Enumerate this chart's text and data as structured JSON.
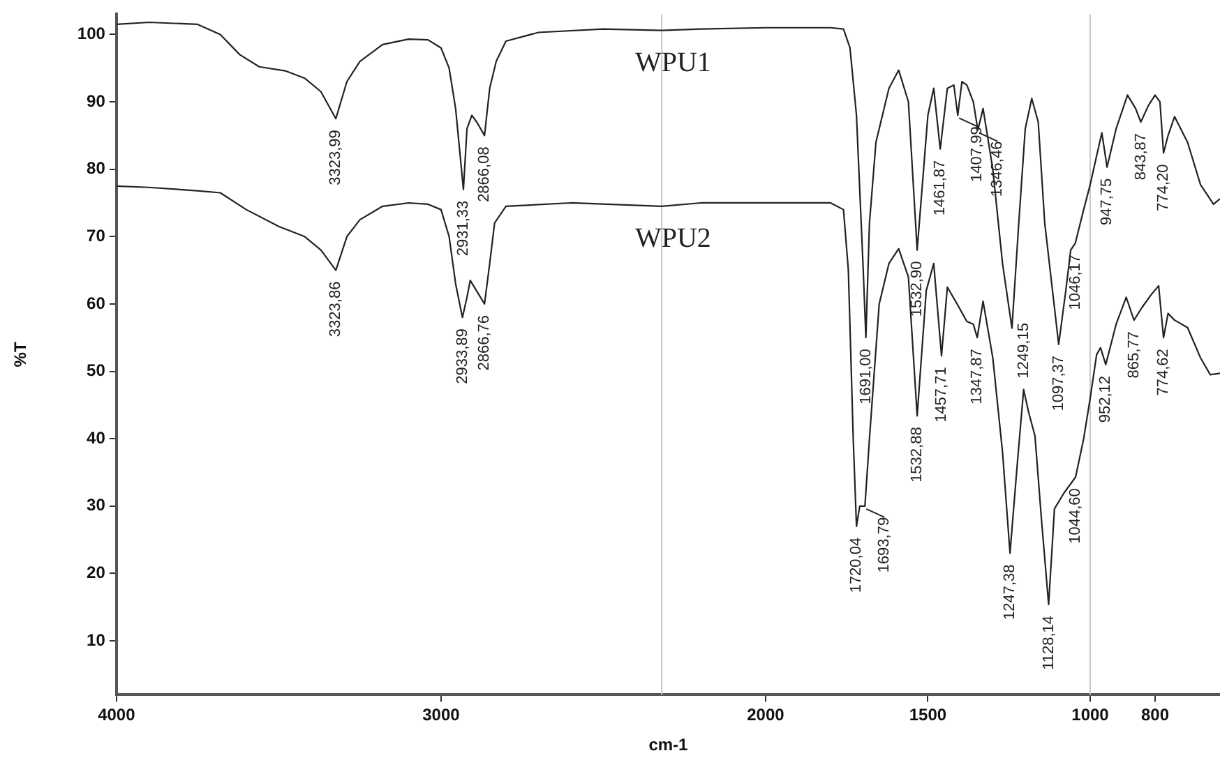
{
  "chart_data": {
    "type": "line",
    "xlabel": "cm-1",
    "ylabel": "%T",
    "xlim": [
      4000,
      600
    ],
    "xticks": [
      4000,
      3000,
      2000,
      1500,
      1000,
      800
    ],
    "ylim": [
      2,
      103
    ],
    "yticks": [
      10,
      20,
      30,
      40,
      50,
      60,
      70,
      80,
      90,
      100
    ],
    "grid": false,
    "legend": false,
    "marker": "none",
    "line_style": "solid",
    "ref_lines": [
      {
        "axis": "x",
        "value": 2320,
        "color": "#c8c8c8"
      },
      {
        "axis": "x",
        "value": 1000,
        "color": "#c8c8c8"
      }
    ],
    "series": [
      {
        "name": "WPU1",
        "color": "#222222",
        "x": [
          4000,
          3900,
          3750,
          3680,
          3620,
          3560,
          3480,
          3420,
          3370,
          3324,
          3290,
          3250,
          3180,
          3100,
          3040,
          3000,
          2975,
          2955,
          2931,
          2920,
          2905,
          2890,
          2866,
          2850,
          2830,
          2800,
          2700,
          2500,
          2320,
          2200,
          2000,
          1800,
          1760,
          1740,
          1720,
          1700,
          1691,
          1680,
          1660,
          1620,
          1590,
          1560,
          1533,
          1500,
          1482,
          1462,
          1440,
          1420,
          1408,
          1395,
          1380,
          1360,
          1346,
          1330,
          1300,
          1270,
          1241,
          1220,
          1200,
          1180,
          1160,
          1140,
          1097,
          1075,
          1060,
          1046,
          1020,
          1000,
          980,
          964,
          948,
          920,
          885,
          860,
          844,
          820,
          800,
          785,
          774,
          760,
          740,
          700,
          660,
          620,
          600
        ],
        "values": [
          101.5,
          101.8,
          101.5,
          100,
          97,
          95.2,
          94.6,
          93.5,
          91.5,
          87.5,
          93,
          96,
          98.5,
          99.3,
          99.2,
          98,
          95,
          89,
          77,
          86,
          88,
          87,
          85,
          92,
          96,
          99,
          100.3,
          100.8,
          100.6,
          100.8,
          101,
          101,
          100.8,
          98,
          88,
          66,
          55,
          72,
          84,
          92,
          94.7,
          90,
          68,
          88,
          92,
          83,
          92,
          92.5,
          88,
          93,
          92.5,
          90,
          85.8,
          89,
          80,
          66,
          56.4,
          72,
          86,
          90.5,
          87,
          72,
          54,
          62,
          68,
          69,
          74,
          77.7,
          82,
          85.4,
          80.3,
          86,
          91,
          89,
          87,
          89.5,
          91,
          90,
          82.4,
          85,
          87.8,
          84,
          77.7,
          74.8,
          75.6
        ]
      },
      {
        "name": "WPU2",
        "color": "#222222",
        "x": [
          4000,
          3900,
          3750,
          3680,
          3600,
          3500,
          3420,
          3370,
          3324,
          3290,
          3250,
          3180,
          3100,
          3040,
          3000,
          2975,
          2955,
          2934,
          2920,
          2910,
          2866,
          2850,
          2835,
          2800,
          2600,
          2320,
          2200,
          2000,
          1800,
          1760,
          1745,
          1730,
          1720,
          1710,
          1694,
          1680,
          1650,
          1620,
          1590,
          1560,
          1533,
          1505,
          1482,
          1458,
          1440,
          1410,
          1380,
          1360,
          1348,
          1330,
          1300,
          1270,
          1247,
          1225,
          1205,
          1190,
          1170,
          1150,
          1128,
          1110,
          1080,
          1045,
          1020,
          1000,
          980,
          968,
          952,
          920,
          889,
          865,
          840,
          810,
          789,
          774,
          760,
          740,
          700,
          660,
          630,
          600
        ],
        "values": [
          77.5,
          77.3,
          76.8,
          76.5,
          74,
          71.5,
          70,
          68,
          65,
          70,
          72.5,
          74.5,
          75,
          74.8,
          74,
          70,
          63,
          58,
          61,
          63.5,
          60,
          66,
          72,
          74.5,
          75,
          74.5,
          75,
          75,
          75,
          74,
          65,
          40,
          27,
          30,
          30,
          40,
          60,
          66,
          68.2,
          64,
          43.4,
          62,
          66,
          52.3,
          62.5,
          60,
          57.4,
          57,
          55,
          60.4,
          52,
          38,
          23,
          36,
          47.3,
          44,
          40.4,
          28,
          15.4,
          29.6,
          32,
          34.3,
          40,
          46,
          52.5,
          53.5,
          51,
          57,
          61,
          57.6,
          59.5,
          61.5,
          62.7,
          55,
          58.6,
          57.6,
          56.5,
          52,
          49.5,
          49.7
        ]
      }
    ],
    "annotations": [
      {
        "text": "3323,99",
        "x": 3324,
        "y": 87.5
      },
      {
        "text": "2931,33",
        "x": 2931,
        "y": 77
      },
      {
        "text": "2866,08",
        "x": 2866,
        "y": 85
      },
      {
        "text": "3323,86",
        "x": 3324,
        "y": 65
      },
      {
        "text": "2933,89",
        "x": 2934,
        "y": 58
      },
      {
        "text": "2866,76",
        "x": 2866,
        "y": 60
      },
      {
        "text": "1691,00",
        "x": 1691,
        "y": 55
      },
      {
        "text": "1532,90",
        "x": 1533,
        "y": 68
      },
      {
        "text": "1461,87",
        "x": 1462,
        "y": 83
      },
      {
        "text": "1407,99",
        "x": 1408,
        "y": 88
      },
      {
        "text": "1346,46",
        "x": 1346,
        "y": 85.8
      },
      {
        "text": "1046,17",
        "x": 1046,
        "y": 69
      },
      {
        "text": "947,75",
        "x": 948,
        "y": 80.3
      },
      {
        "text": "843,87",
        "x": 844,
        "y": 87
      },
      {
        "text": "774,20",
        "x": 774,
        "y": 82.4
      },
      {
        "text": "1720,04",
        "x": 1720,
        "y": 27
      },
      {
        "text": "1693,79",
        "x": 1694,
        "y": 30
      },
      {
        "text": "1532,88",
        "x": 1533,
        "y": 43.4
      },
      {
        "text": "1457,71",
        "x": 1458,
        "y": 52.3
      },
      {
        "text": "1347,87",
        "x": 1348,
        "y": 55
      },
      {
        "text": "1249,15",
        "x": 1205,
        "y": 47.3
      },
      {
        "text": "1247,38",
        "x": 1247,
        "y": 23
      },
      {
        "text": "1128,14",
        "x": 1128,
        "y": 15.4
      },
      {
        "text": "1097,37",
        "x": 1097,
        "y": 54
      },
      {
        "text": "1044,60",
        "x": 1045,
        "y": 34.3
      },
      {
        "text": "952,12",
        "x": 952,
        "y": 51
      },
      {
        "text": "865,77",
        "x": 865,
        "y": 57.6
      },
      {
        "text": "774,62",
        "x": 774,
        "y": 55
      }
    ]
  }
}
